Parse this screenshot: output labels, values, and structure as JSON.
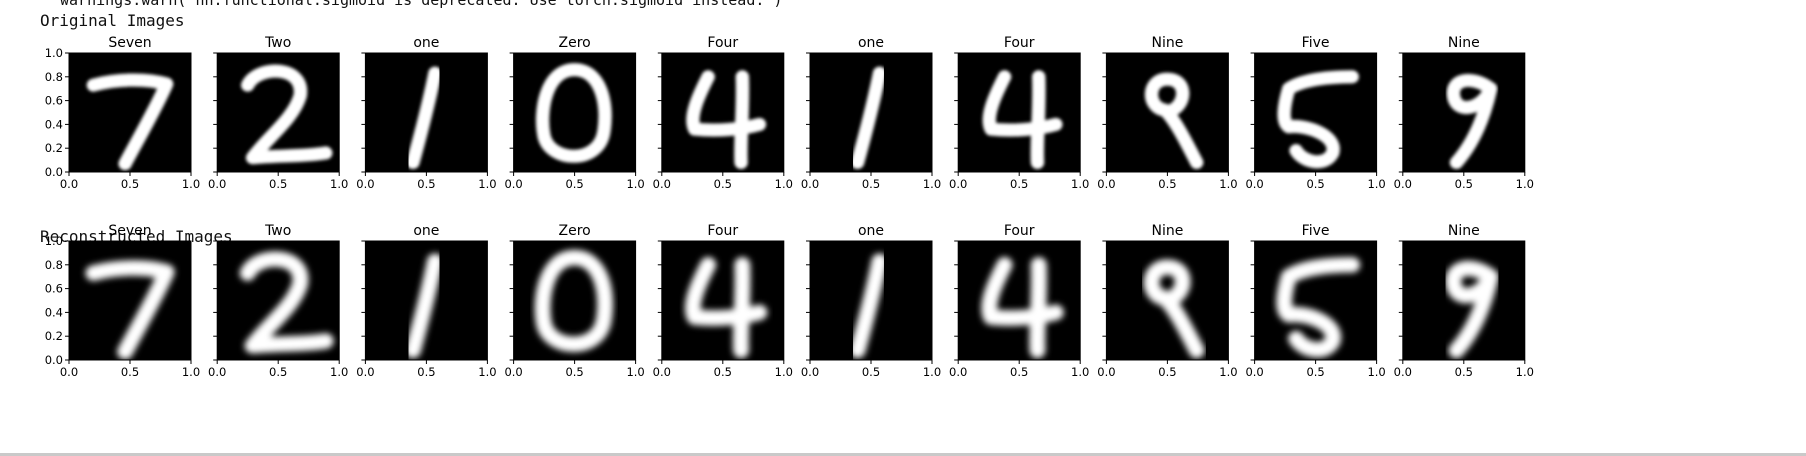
{
  "output": {
    "warning_text": "warnings.warn(\"nn.functional.sigmoid is deprecated. Use torch.sigmoid instead.\")",
    "rows": [
      {
        "heading": "Original Images",
        "labels": [
          "Seven",
          "Two",
          "one",
          "Zero",
          "Four",
          "one",
          "Four",
          "Nine",
          "Five",
          "Nine"
        ]
      },
      {
        "heading": "Reconstructed Images",
        "labels": [
          "Seven",
          "Two",
          "one",
          "Zero",
          "Four",
          "one",
          "Four",
          "Nine",
          "Five",
          "Nine"
        ]
      }
    ],
    "y_ticks": [
      "0.0",
      "0.2",
      "0.4",
      "0.6",
      "0.8",
      "1.0"
    ],
    "x_ticks": [
      "0.0",
      "0.5",
      "1.0"
    ],
    "colors": {
      "panel_background": "#000000",
      "digit_stroke": "#ffffff",
      "axis": "#000000"
    }
  }
}
